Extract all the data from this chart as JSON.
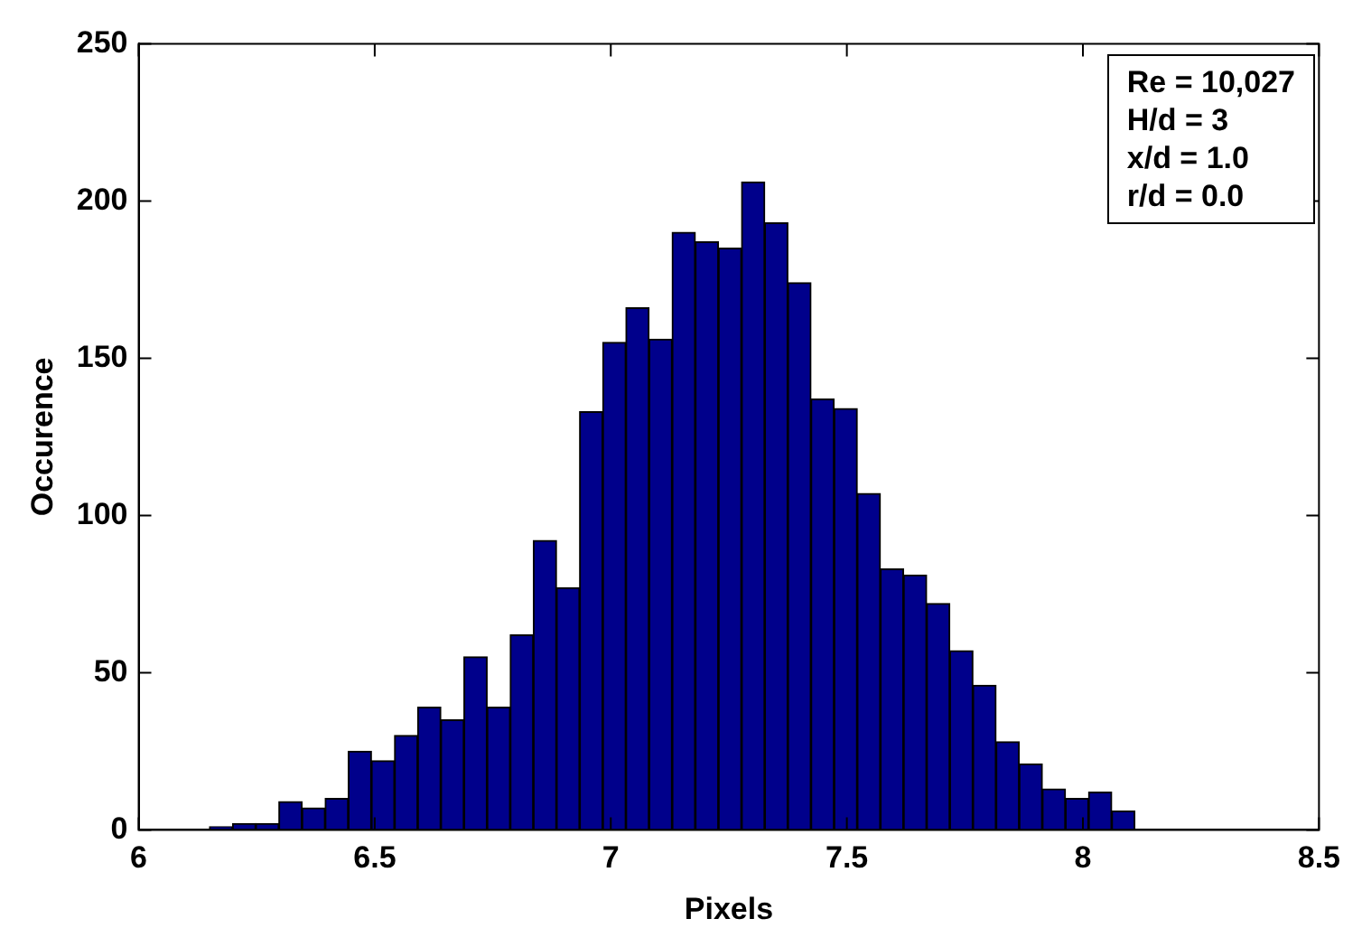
{
  "chart_data": {
    "type": "histogram",
    "xlabel": "Pixels",
    "ylabel": "Occurence",
    "bins": [
      6.15,
      6.199,
      6.248,
      6.297,
      6.346,
      6.395,
      6.444,
      6.493,
      6.542,
      6.591,
      6.64,
      6.689,
      6.738,
      6.787,
      6.836,
      6.885,
      6.934,
      6.983,
      7.032,
      7.081,
      7.13,
      7.179,
      7.228,
      7.277,
      7.326,
      7.375,
      7.424,
      7.473,
      7.522,
      7.571,
      7.62,
      7.669,
      7.718,
      7.767,
      7.816,
      7.865,
      7.914,
      7.963,
      8.012,
      8.061,
      8.11
    ],
    "values": [
      1,
      2,
      2,
      9,
      7,
      10,
      25,
      22,
      30,
      39,
      35,
      55,
      39,
      62,
      92,
      77,
      133,
      155,
      166,
      156,
      190,
      187,
      185,
      206,
      193,
      174,
      137,
      134,
      107,
      83,
      81,
      72,
      57,
      46,
      28,
      21,
      13,
      10,
      12,
      6
    ],
    "color": "#00008b",
    "xlim": [
      6,
      8.5
    ],
    "xticks": [
      6,
      6.5,
      7,
      7.5,
      8,
      8.5
    ],
    "ylim": [
      0,
      250
    ],
    "yticks": [
      0,
      50,
      100,
      150,
      200,
      250
    ],
    "grid": false,
    "legend": false,
    "annotations": [
      "Re = 10,027",
      "H/d = 3",
      "x/d = 1.0",
      "r/d = 0.0"
    ]
  }
}
